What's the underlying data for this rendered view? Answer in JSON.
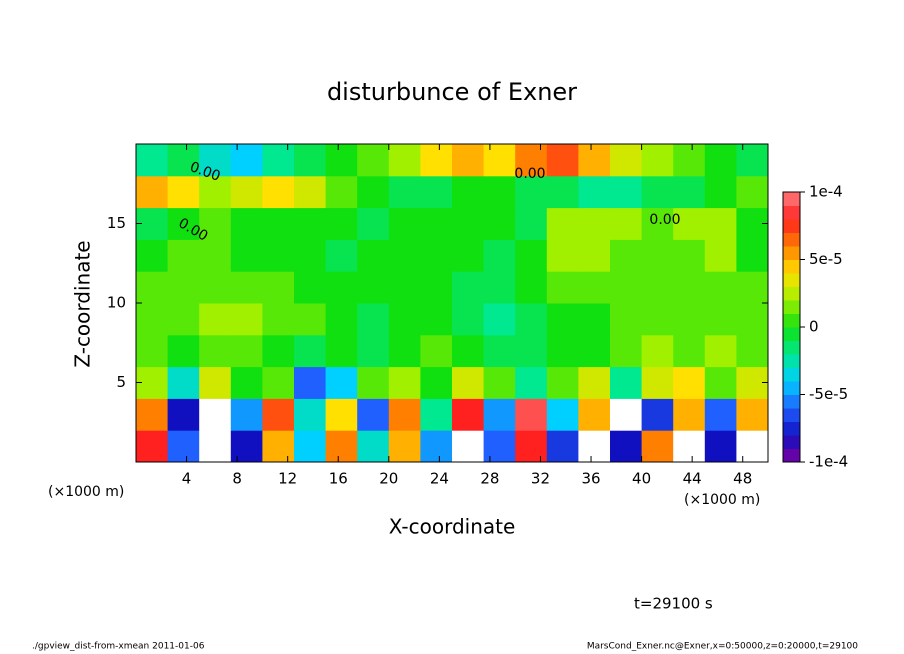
{
  "chart_data": {
    "type": "heatmap",
    "title": "disturbunce of Exner",
    "xlabel": "X-coordinate",
    "ylabel": "Z-coordinate",
    "x_unit_label": "(×1000 m)",
    "time_label": "t=29100 s",
    "footer_left": "./gpview_dist-from-xmean  2011-01-06",
    "footer_right": "MarsCond_Exner.nc@Exner,x=0:50000,z=0:20000,t=29100",
    "annotations": [
      "0.00",
      "0.00",
      "0.00",
      "0.00"
    ],
    "xlim": [
      0,
      50
    ],
    "xticks": [
      4,
      8,
      12,
      16,
      20,
      24,
      28,
      32,
      36,
      40,
      44,
      48
    ],
    "ylim": [
      0,
      20
    ],
    "yticks": [
      5,
      10,
      15
    ],
    "clim": [
      -0.0001,
      0.0001
    ],
    "cticks": [
      {
        "value": 0.0001,
        "label": "1e-4"
      },
      {
        "value": 5e-05,
        "label": "5e-5"
      },
      0,
      {
        "value": -5e-05,
        "label": "-5e-5"
      },
      {
        "value": -0.0001,
        "label": "-1e-4"
      }
    ],
    "colormap": [
      "#8000a0",
      "#1010c0",
      "#2060ff",
      "#00d0ff",
      "#00e890",
      "#10e010",
      "#a0f000",
      "#ffe000",
      "#ff8000",
      "#ff2020",
      "#ff8080"
    ],
    "over_color": "#ffffff",
    "z": [
      [
        8e-05,
        -6e-05,
        0.00012,
        -8e-05,
        5e-05,
        -4e-05,
        6e-05,
        -3e-05,
        5e-05,
        -5e-05,
        0.00012,
        -6e-05,
        8e-05,
        -7e-05,
        0.00012,
        -8e-05,
        6e-05,
        0.00012,
        -8e-05,
        0.00012
      ],
      [
        6e-05,
        -8e-05,
        0.00011,
        -5e-05,
        7e-05,
        -3e-05,
        4e-05,
        -6e-05,
        6e-05,
        -2e-05,
        8e-05,
        -5e-05,
        9e-05,
        -4e-05,
        5e-05,
        0.00011,
        -7e-05,
        5e-05,
        -6e-05,
        5e-05
      ],
      [
        2e-05,
        -3e-05,
        3e-05,
        0,
        1e-05,
        -6e-05,
        -4e-05,
        1e-05,
        2e-05,
        0,
        3e-05,
        1e-05,
        -2e-05,
        1e-05,
        3e-05,
        -2e-05,
        3e-05,
        4e-05,
        1e-05,
        3e-05
      ],
      [
        1e-05,
        0,
        1e-05,
        1e-05,
        0,
        -1e-05,
        0,
        -1e-05,
        0,
        1e-05,
        0,
        -1e-05,
        -1e-05,
        0,
        0,
        1e-05,
        2e-05,
        1e-05,
        2e-05,
        1e-05
      ],
      [
        1e-05,
        1e-05,
        2e-05,
        2e-05,
        1e-05,
        1e-05,
        0,
        -1e-05,
        0,
        0,
        -1e-05,
        -2e-05,
        -1e-05,
        0,
        0,
        1e-05,
        1e-05,
        1e-05,
        1e-05,
        1e-05
      ],
      [
        1e-05,
        1e-05,
        1e-05,
        1e-05,
        1e-05,
        0,
        0,
        0,
        0,
        0,
        -1e-05,
        -1e-05,
        0,
        1e-05,
        1e-05,
        1e-05,
        1e-05,
        1e-05,
        1e-05,
        1e-05
      ],
      [
        0,
        1e-05,
        1e-05,
        0,
        0,
        0,
        -1e-05,
        0,
        0,
        0,
        0,
        -1e-05,
        0,
        2e-05,
        2e-05,
        1e-05,
        1e-05,
        1e-05,
        2e-05,
        0
      ],
      [
        -1e-05,
        0,
        1e-05,
        0,
        0,
        0,
        0,
        -1e-05,
        0,
        0,
        0,
        0,
        -1e-05,
        2e-05,
        2e-05,
        2e-05,
        1e-05,
        2e-05,
        2e-05,
        0
      ],
      [
        5e-05,
        4e-05,
        2e-05,
        3e-05,
        4e-05,
        3e-05,
        1e-05,
        0,
        -1e-05,
        -1e-05,
        0,
        0,
        -1e-05,
        -1e-05,
        -2e-05,
        -2e-05,
        -1e-05,
        -1e-05,
        0,
        1e-05
      ],
      [
        -2e-05,
        -1e-05,
        -3e-05,
        -4e-05,
        -2e-05,
        -1e-05,
        0,
        1e-05,
        2e-05,
        4e-05,
        5e-05,
        4e-05,
        6e-05,
        7e-05,
        5e-05,
        3e-05,
        2e-05,
        1e-05,
        0,
        -1e-05
      ]
    ]
  }
}
